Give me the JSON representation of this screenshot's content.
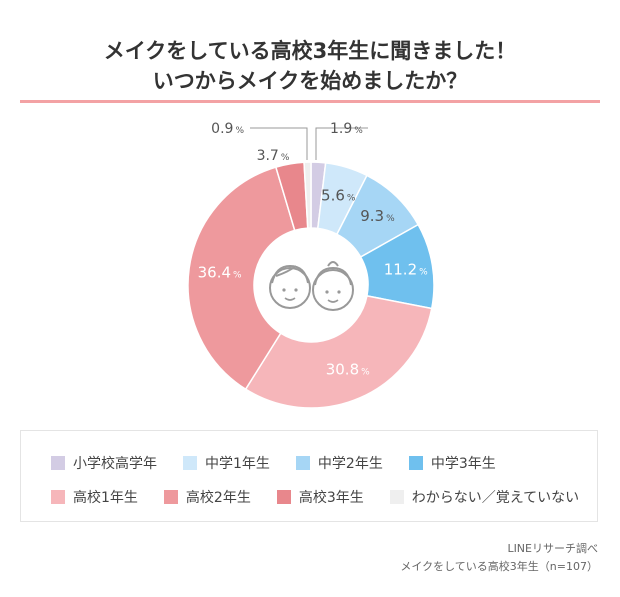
{
  "title": {
    "line1": "メイクをしている高校3年生に聞きました！",
    "line2": "いつからメイクを始めましたか？"
  },
  "chart_data": {
    "type": "pie",
    "categories": [
      "小学校高学年",
      "中学1年生",
      "中学2年生",
      "中学3年生",
      "高校1年生",
      "高校2年生",
      "高校3年生",
      "わからない／覚えていない"
    ],
    "values": [
      1.9,
      5.6,
      9.3,
      11.2,
      30.8,
      36.4,
      3.7,
      0.9
    ],
    "labels": [
      "1.9",
      "5.6",
      "9.3",
      "11.2",
      "30.8",
      "36.4",
      "3.7",
      "0.9"
    ],
    "unit": "%",
    "colors": [
      "#d3cce4",
      "#cfe8fa",
      "#a6d6f5",
      "#6fc0ee",
      "#f6b6ba",
      "#ee999d",
      "#e8878c",
      "#efefef"
    ],
    "legend_placement": "bottom"
  },
  "legend": [
    {
      "label": "小学校高学年",
      "color": "#d3cce4"
    },
    {
      "label": "中学1年生",
      "color": "#cfe8fa"
    },
    {
      "label": "中学2年生",
      "color": "#a6d6f5"
    },
    {
      "label": "中学3年生",
      "color": "#6fc0ee"
    },
    {
      "label": "高校1年生",
      "color": "#f6b6ba"
    },
    {
      "label": "高校2年生",
      "color": "#ee999d"
    },
    {
      "label": "高校3年生",
      "color": "#e8878c"
    },
    {
      "label": "わからない／覚えていない",
      "color": "#efefef"
    }
  ],
  "source": {
    "line1": "LINEリサーチ調べ",
    "line2": "メイクをしている高校3年生（n=107）"
  }
}
